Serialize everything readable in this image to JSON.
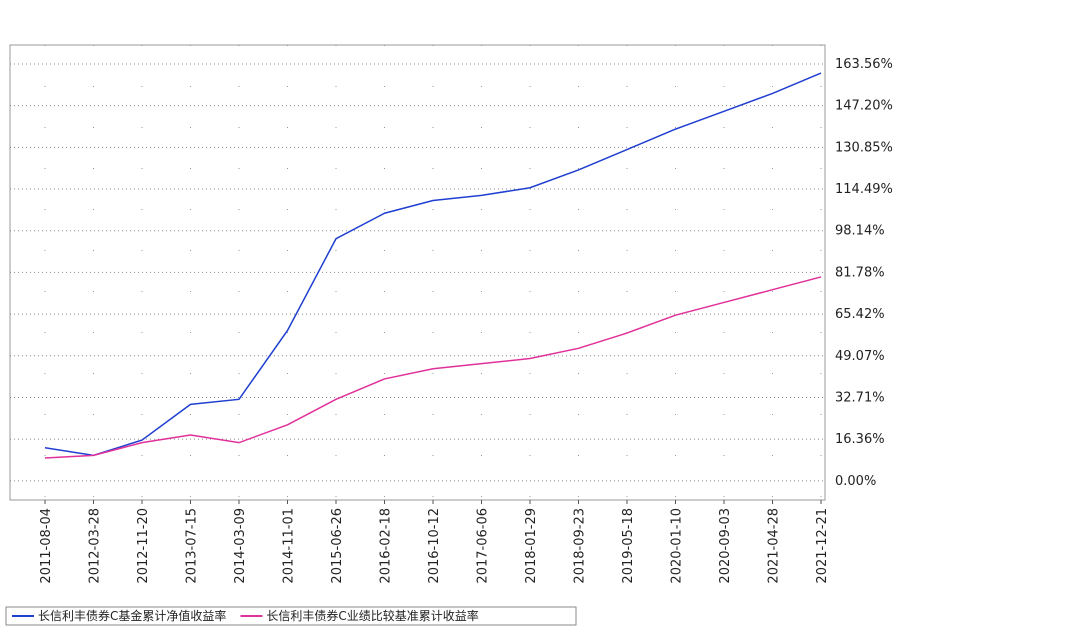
{
  "chart_data": {
    "type": "line",
    "categories": [
      "2011-08-04",
      "2012-03-28",
      "2012-11-20",
      "2013-07-15",
      "2014-03-09",
      "2014-11-01",
      "2015-06-26",
      "2016-02-18",
      "2016-10-12",
      "2017-06-06",
      "2018-01-29",
      "2018-09-23",
      "2019-05-18",
      "2020-01-10",
      "2020-09-03",
      "2021-04-28",
      "2021-12-21"
    ],
    "series": [
      {
        "name": "长信利丰债券C基金累计净值收益率",
        "color": "#1f3fd0",
        "values": [
          13,
          10,
          16,
          30,
          32,
          59,
          95,
          105,
          110,
          112,
          115,
          122,
          130,
          138,
          145,
          152,
          160
        ]
      },
      {
        "name": "长信利丰债券C业绩比较基准累计收益率",
        "color": "#e0309a",
        "values": [
          9,
          10,
          15,
          18,
          15,
          22,
          32,
          40,
          44,
          46,
          48,
          52,
          58,
          65,
          70,
          75,
          80
        ]
      }
    ],
    "ylim": [
      -7.5,
      171
    ],
    "yticks": [
      {
        "value": 0,
        "label": "0.00%"
      },
      {
        "value": 16.36,
        "label": "16.36%"
      },
      {
        "value": 32.71,
        "label": "32.71%"
      },
      {
        "value": 49.07,
        "label": "49.07%"
      },
      {
        "value": 65.42,
        "label": "65.42%"
      },
      {
        "value": 81.78,
        "label": "81.78%"
      },
      {
        "value": 98.14,
        "label": "98.14%"
      },
      {
        "value": 114.49,
        "label": "114.49%"
      },
      {
        "value": 130.85,
        "label": "130.85%"
      },
      {
        "value": 147.2,
        "label": "147.20%"
      },
      {
        "value": 163.56,
        "label": "163.56%"
      }
    ],
    "grid": true
  }
}
